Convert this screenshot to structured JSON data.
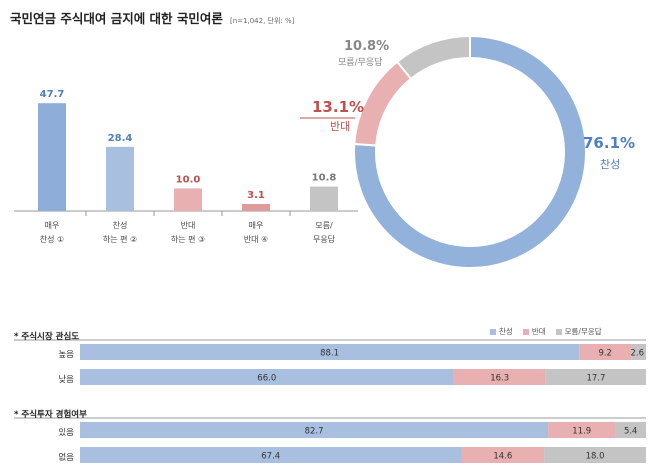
{
  "title": "국민연금 주식대여 금지에 대한 국민여론",
  "title_note": "[n=1,042, 단위: %]",
  "colors": {
    "agree": "#a8bfe0",
    "agree_dark": "#93b2db",
    "strong": "#8eadd9",
    "oppose": "#e8b0b0",
    "oppose_strong": "#df9a9a",
    "unknown": "#c4c4c4",
    "agree_text": "#4f7fbf",
    "oppose_text": "#c0504d",
    "unknown_text": "#777777"
  },
  "chart_data": [
    {
      "type": "bar",
      "categories": [
        [
          "매우",
          "찬성 ①"
        ],
        [
          "찬성",
          "하는 편 ②"
        ],
        [
          "반대",
          "하는 편 ③"
        ],
        [
          "매우",
          "반대 ④"
        ],
        [
          "모름/",
          "무응답"
        ]
      ],
      "values": [
        47.7,
        28.4,
        10.0,
        3.1,
        10.8
      ],
      "value_labels": [
        "47.7",
        "28.4",
        "10.0",
        "3.1",
        "10.8"
      ],
      "ylim": [
        0,
        50
      ]
    },
    {
      "type": "pie",
      "donut": true,
      "slices": [
        {
          "label": "찬성",
          "value": 76.1,
          "value_label": "76.1%"
        },
        {
          "label": "반대",
          "value": 13.1,
          "value_label": "13.1%"
        },
        {
          "label": "모름/무응답",
          "value": 10.8,
          "value_label": "10.8%"
        }
      ]
    },
    {
      "type": "bar",
      "stacked": true,
      "horizontal": true,
      "legend": [
        "찬성",
        "반대",
        "모름/무응답"
      ],
      "legend_position": "top-right",
      "groups": [
        {
          "title": "* 주식시장 관심도",
          "rows": [
            {
              "label": "높음",
              "values": [
                88.1,
                9.2,
                2.6
              ],
              "value_labels": [
                "88.1",
                "9.2",
                "2.6"
              ]
            },
            {
              "label": "낮음",
              "values": [
                66.0,
                16.3,
                17.7
              ],
              "value_labels": [
                "66.0",
                "16.3",
                "17.7"
              ]
            }
          ]
        },
        {
          "title": "* 주식투자 경험여부",
          "rows": [
            {
              "label": "있음",
              "values": [
                82.7,
                11.9,
                5.4
              ],
              "value_labels": [
                "82.7",
                "11.9",
                "5.4"
              ]
            },
            {
              "label": "없음",
              "values": [
                67.4,
                14.6,
                18.0
              ],
              "value_labels": [
                "67.4",
                "14.6",
                "18.0"
              ]
            }
          ]
        }
      ]
    }
  ]
}
